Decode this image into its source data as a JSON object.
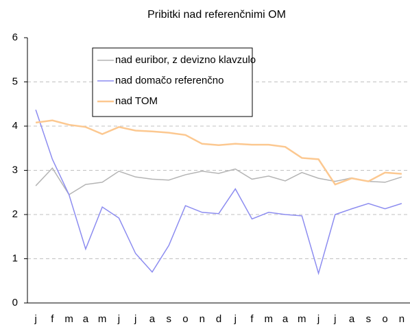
{
  "chart_data": {
    "type": "line",
    "title": "Pribitki nad referenčnimi OM",
    "categories": [
      "j",
      "f",
      "m",
      "a",
      "m",
      "j",
      "j",
      "a",
      "s",
      "o",
      "n",
      "d",
      "j",
      "f",
      "m",
      "a",
      "m",
      "j",
      "j",
      "a",
      "s",
      "o",
      "n"
    ],
    "series": [
      {
        "name": "nad euribor, z devizno klavzulo",
        "color": "#b4b4b4",
        "values": [
          2.65,
          3.05,
          2.45,
          2.68,
          2.73,
          2.98,
          2.85,
          2.8,
          2.78,
          2.9,
          2.98,
          2.93,
          3.03,
          2.8,
          2.87,
          2.76,
          2.95,
          2.82,
          2.75,
          2.83,
          2.75,
          2.73,
          2.85
        ]
      },
      {
        "name": "nad domačo referenčno",
        "color": "#8c8cf0",
        "values": [
          4.37,
          3.25,
          2.45,
          1.22,
          2.17,
          1.92,
          1.12,
          0.7,
          1.3,
          2.2,
          2.05,
          2.02,
          2.58,
          1.9,
          2.05,
          2.0,
          1.97,
          0.67,
          2.0,
          2.13,
          2.25,
          2.13,
          2.25
        ]
      },
      {
        "name": "nad TOM",
        "color": "#fcc890",
        "values": [
          4.08,
          4.13,
          4.03,
          3.98,
          3.82,
          3.98,
          3.9,
          3.88,
          3.85,
          3.8,
          3.6,
          3.57,
          3.6,
          3.58,
          3.58,
          3.53,
          3.28,
          3.25,
          2.68,
          2.82,
          2.75,
          2.95,
          2.92
        ]
      }
    ],
    "ylim": [
      0,
      6
    ],
    "yticks": [
      0,
      1,
      2,
      3,
      4,
      5,
      6
    ],
    "grid": true
  }
}
